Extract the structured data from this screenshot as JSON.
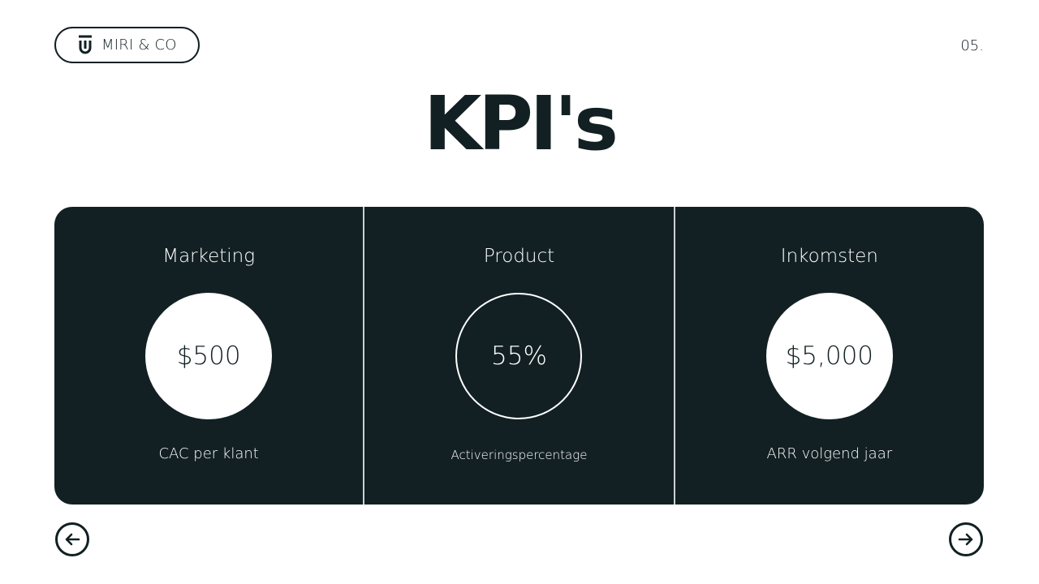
{
  "brand": {
    "name": "MIRI & CO",
    "icon": "logo-mark"
  },
  "page_number": "05.",
  "title": "KPI's",
  "kpis": [
    {
      "category": "Marketing",
      "value": "$500",
      "label": "CAC per klant",
      "style": "filled"
    },
    {
      "category": "Product",
      "value": "55%",
      "label": "Activeringspercentage",
      "style": "outline"
    },
    {
      "category": "Inkomsten",
      "value": "$5,000",
      "label": "ARR volgend jaar",
      "style": "filled"
    }
  ],
  "nav": {
    "prev": "arrow-left-icon",
    "next": "arrow-right-icon"
  },
  "colors": {
    "dark": "#122023",
    "light": "#ffffff"
  }
}
